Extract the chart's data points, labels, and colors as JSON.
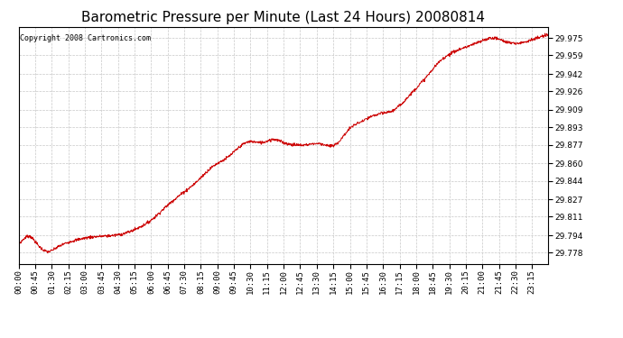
{
  "title": "Barometric Pressure per Minute (Last 24 Hours) 20080814",
  "copyright": "Copyright 2008 Cartronics.com",
  "line_color": "#cc0000",
  "background_color": "#ffffff",
  "plot_bg_color": "#ffffff",
  "grid_color": "#c8c8c8",
  "yticks": [
    29.778,
    29.794,
    29.811,
    29.827,
    29.844,
    29.86,
    29.877,
    29.893,
    29.909,
    29.926,
    29.942,
    29.959,
    29.975
  ],
  "xtick_labels": [
    "00:00",
    "00:45",
    "01:30",
    "02:15",
    "03:00",
    "03:45",
    "04:30",
    "05:15",
    "06:00",
    "06:45",
    "07:30",
    "08:15",
    "09:00",
    "09:45",
    "10:30",
    "11:15",
    "12:00",
    "12:45",
    "13:30",
    "14:15",
    "15:00",
    "15:45",
    "16:30",
    "17:15",
    "18:00",
    "18:45",
    "19:30",
    "20:15",
    "21:00",
    "21:45",
    "22:30",
    "23:15"
  ],
  "ylim": [
    29.768,
    29.985
  ],
  "title_fontsize": 11,
  "tick_fontsize": 6.5,
  "copyright_fontsize": 6,
  "waypoints_x": [
    0,
    15,
    30,
    50,
    65,
    80,
    100,
    130,
    160,
    190,
    220,
    260,
    290,
    320,
    360,
    390,
    420,
    450,
    480,
    510,
    540,
    570,
    600,
    630,
    660,
    690,
    720,
    750,
    780,
    820,
    860,
    900,
    930,
    960,
    990,
    1020,
    1050,
    1080,
    1110,
    1140,
    1170,
    1210,
    1250,
    1290,
    1320,
    1350,
    1380,
    1410,
    1439
  ],
  "waypoints_y": [
    29.786,
    29.791,
    29.793,
    29.786,
    29.781,
    29.779,
    29.782,
    29.787,
    29.79,
    29.792,
    29.793,
    29.794,
    29.796,
    29.8,
    29.808,
    29.817,
    29.826,
    29.834,
    29.842,
    29.852,
    29.86,
    29.866,
    29.875,
    29.88,
    29.879,
    29.882,
    29.879,
    29.877,
    29.877,
    29.878,
    29.877,
    29.892,
    29.898,
    29.903,
    29.906,
    29.909,
    29.918,
    29.929,
    29.94,
    29.952,
    29.96,
    29.966,
    29.971,
    29.975,
    29.972,
    29.97,
    29.972,
    29.975,
    29.978
  ]
}
